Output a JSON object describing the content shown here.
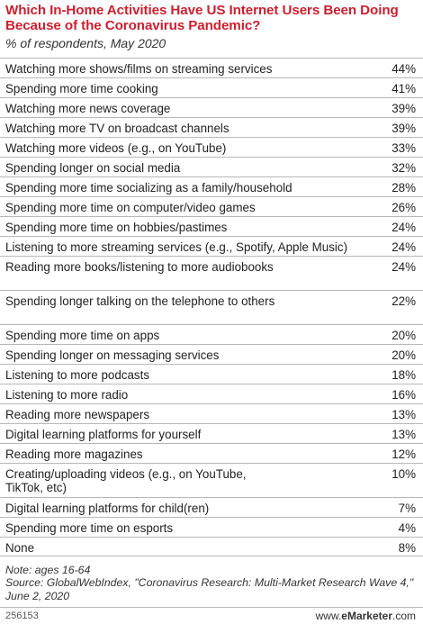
{
  "chart_data": {
    "type": "table",
    "title": "Which In-Home Activities Have US Internet Users Been Doing Because of the Coronavirus Pandemic?",
    "subtitle": "% of respondents, May 2020",
    "rows": [
      {
        "label": "Watching more shows/films on streaming services",
        "value": "44%"
      },
      {
        "label": "Spending more time cooking",
        "value": "41%"
      },
      {
        "label": "Watching more news coverage",
        "value": "39%"
      },
      {
        "label": "Watching more TV on broadcast channels",
        "value": "39%"
      },
      {
        "label": "Watching more videos (e.g., on YouTube)",
        "value": "33%"
      },
      {
        "label": "Spending longer on social media",
        "value": "32%"
      },
      {
        "label": "Spending more time socializing as a family/household",
        "value": "28%"
      },
      {
        "label": "Spending more time on computer/video games",
        "value": "26%"
      },
      {
        "label": "Spending more time on hobbies/pastimes",
        "value": "24%"
      },
      {
        "label": "Listening to more streaming services (e.g., Spotify, Apple Music)",
        "value": "24%"
      },
      {
        "label": "Reading more books/listening to more audiobooks",
        "value": "24%"
      },
      {
        "label": "Spending longer talking on the telephone to others",
        "value": "22%"
      },
      {
        "label": "Spending more time on apps",
        "value": "20%"
      },
      {
        "label": "Spending longer on messaging services",
        "value": "20%"
      },
      {
        "label": "Listening to more podcasts",
        "value": "18%"
      },
      {
        "label": "Listening to more radio",
        "value": "16%"
      },
      {
        "label": "Reading more newspapers",
        "value": "13%"
      },
      {
        "label": "Digital learning platforms for yourself",
        "value": "13%"
      },
      {
        "label": "Reading more magazines",
        "value": "12%"
      },
      {
        "label": "Creating/uploading videos (e.g., on YouTube, TikTok, etc)",
        "value": "10%"
      },
      {
        "label": "Digital learning platforms for child(ren)",
        "value": "7%"
      },
      {
        "label": "Spending more time on esports",
        "value": "4%"
      },
      {
        "label": "None",
        "value": "8%"
      }
    ],
    "note": "Note: ages 16-64",
    "source": "Source: GlobalWebIndex, \"Coronavirus Research: Multi-Market Research Wave 4,\" June 2, 2020"
  },
  "footer": {
    "chart_id": "256153",
    "brand_prefix": "www.",
    "brand_name": "eMarketer",
    "brand_suffix": ".com"
  },
  "colors": {
    "title": "#cc1f2e",
    "rule": "#b8b8b8"
  }
}
